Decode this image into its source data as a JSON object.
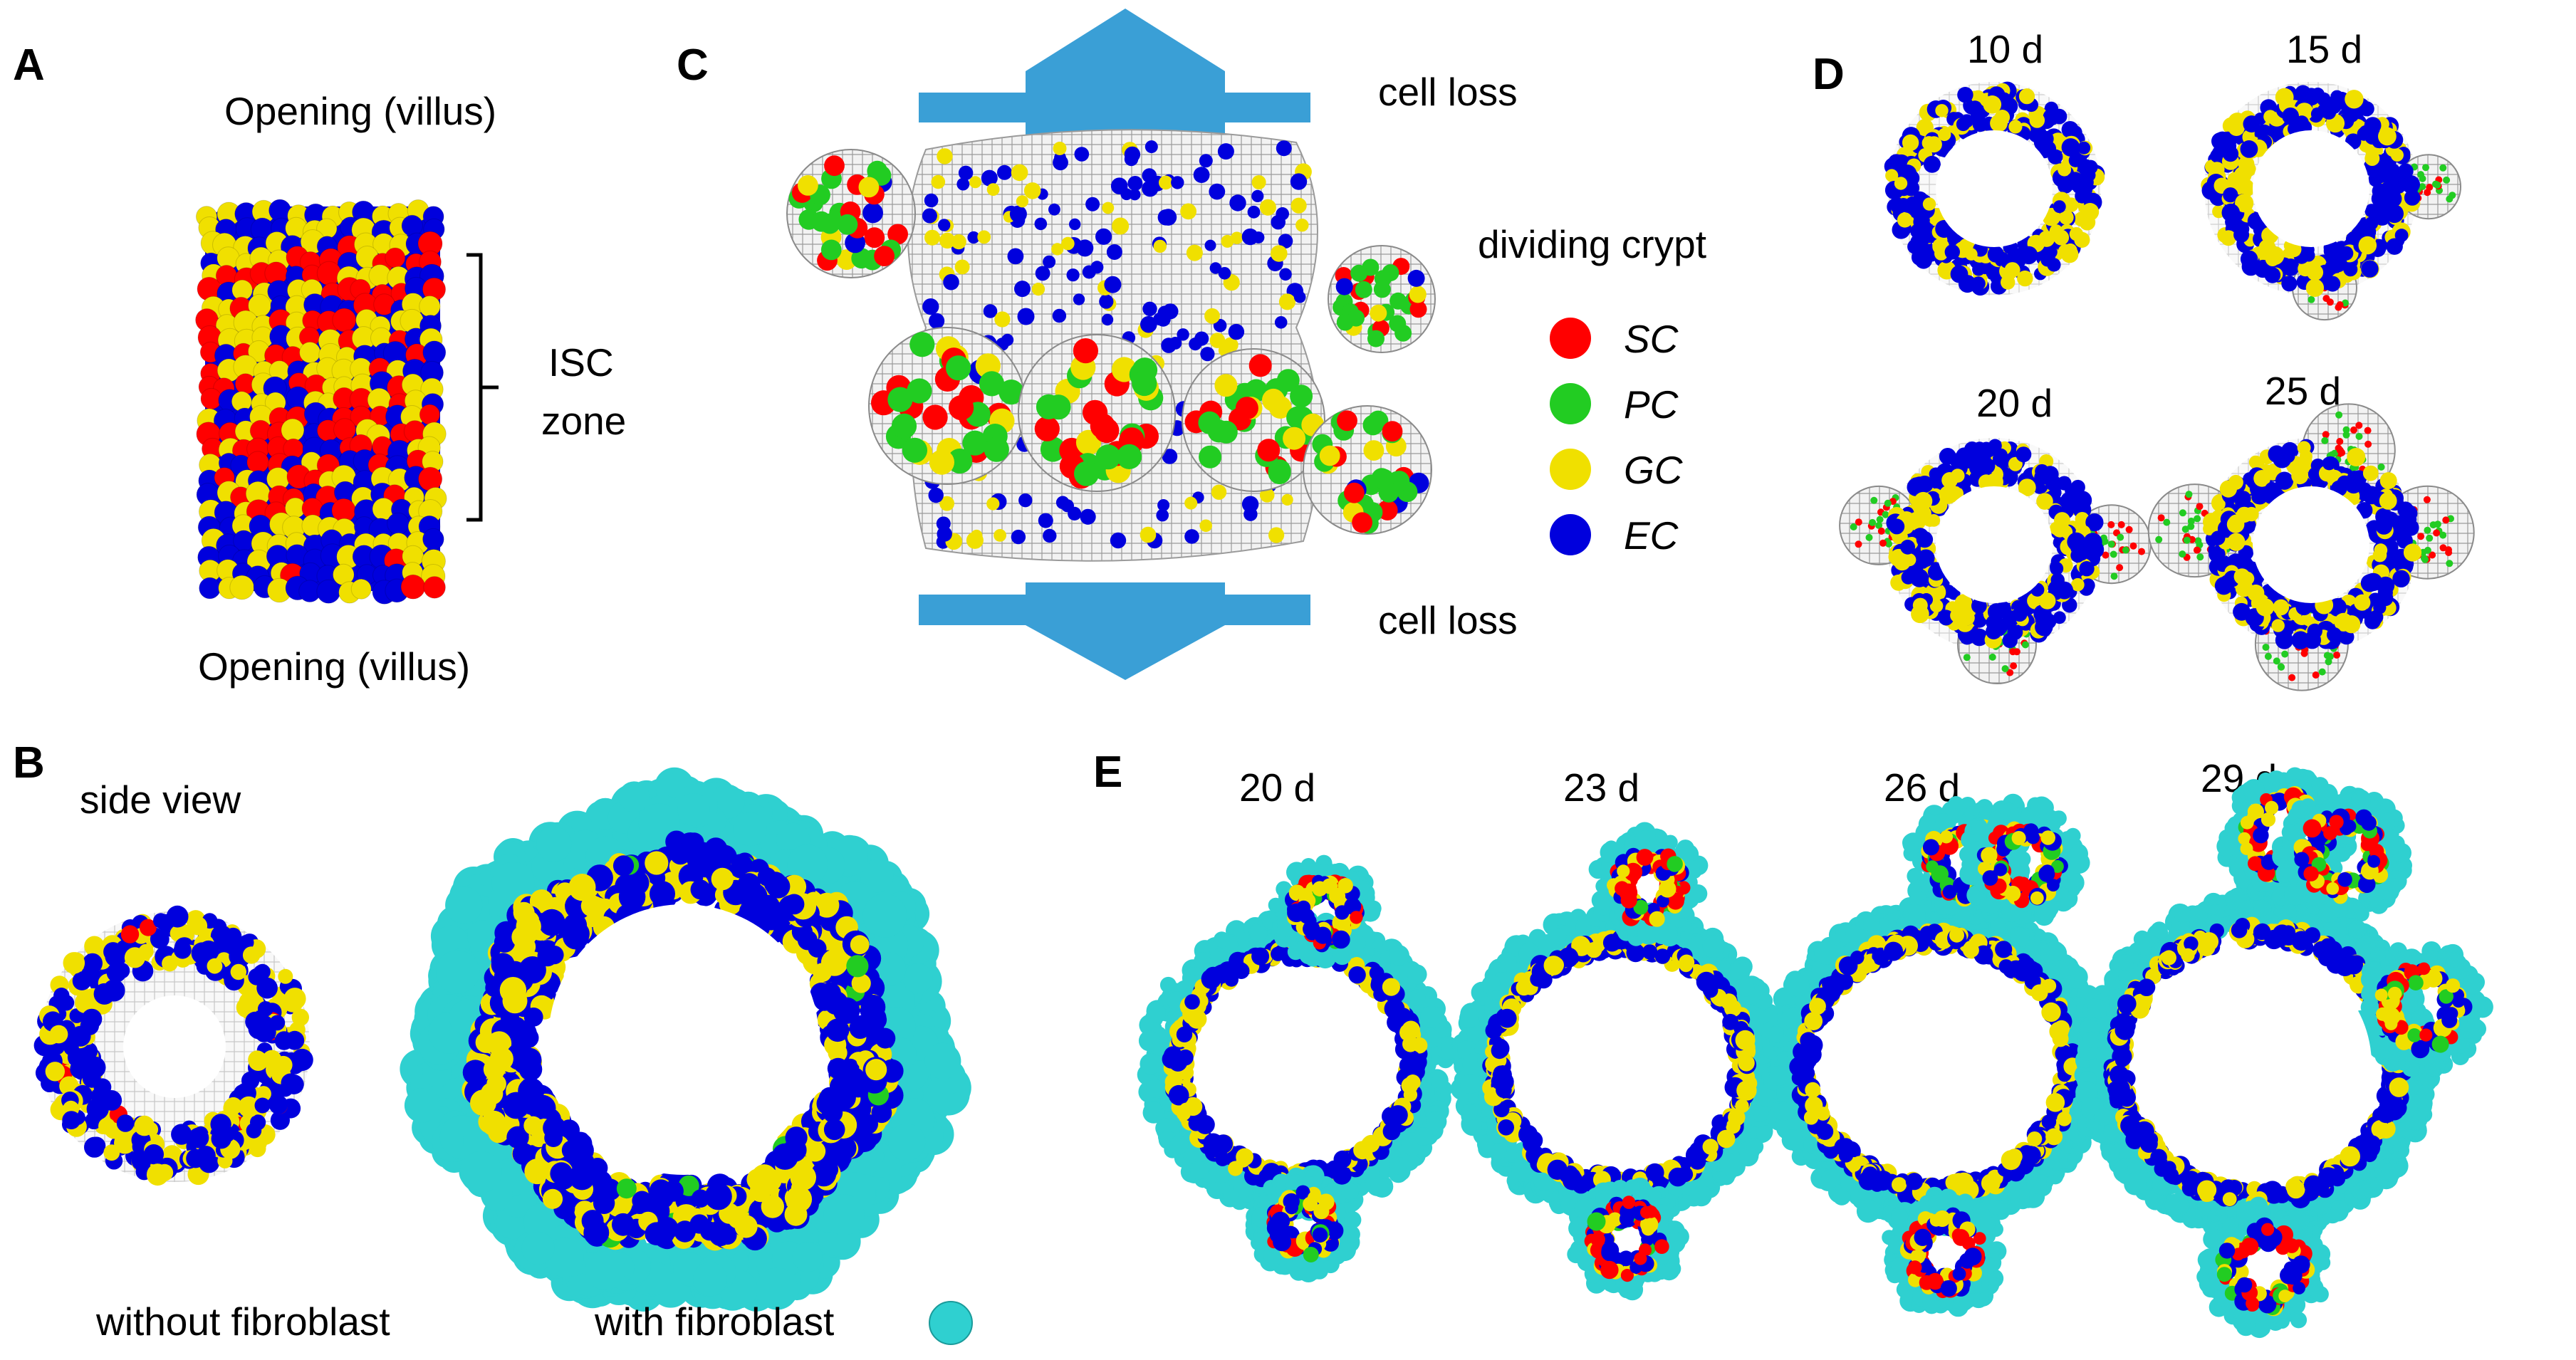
{
  "panels": {
    "a": {
      "label": "A",
      "top_caption": "Opening (villus)",
      "bottom_caption": "Opening (villus)",
      "zone_label_line1": "ISC",
      "zone_label_line2": "zone"
    },
    "b": {
      "label": "B",
      "side_view": "side view",
      "without": "without fibroblast",
      "with": "with fibroblast"
    },
    "c": {
      "label": "C",
      "cell_loss_top": "cell loss",
      "cell_loss_bottom": "cell loss",
      "dividing": "dividing crypt",
      "legend": [
        {
          "name": "SC",
          "color": "#ff0000"
        },
        {
          "name": "PC",
          "color": "#22cc22"
        },
        {
          "name": "GC",
          "color": "#f0e000"
        },
        {
          "name": "EC",
          "color": "#0000dd"
        }
      ]
    },
    "d": {
      "label": "D",
      "times": [
        "10 d",
        "15 d",
        "20 d",
        "25 d"
      ]
    },
    "e": {
      "label": "E",
      "times": [
        "20 d",
        "23 d",
        "26 d",
        "29 d"
      ]
    }
  },
  "colors": {
    "stem": "#ff0000",
    "paneth": "#22cc22",
    "goblet": "#f0e000",
    "entero": "#0000dd",
    "fibroblast": "#2fd0d0",
    "arrow": "#3a9fd6",
    "mesh": "#c8c8c8"
  }
}
